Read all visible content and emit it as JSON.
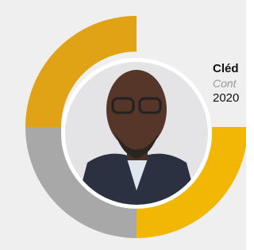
{
  "profile": {
    "name": "Cléd",
    "role": "Cont",
    "year": "2020"
  }
}
